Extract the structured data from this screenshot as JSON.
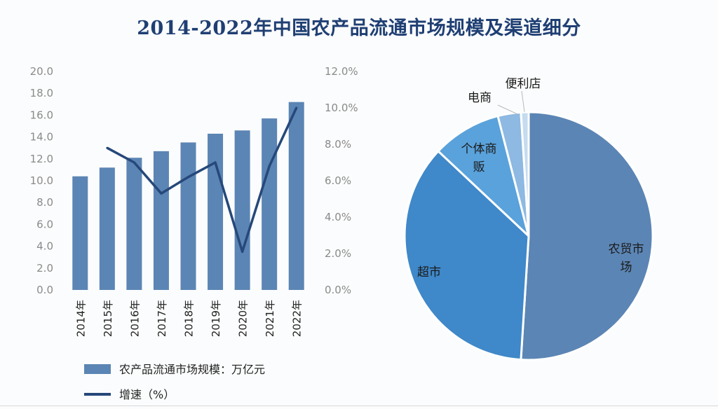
{
  "title": "2014-2022年中国农产品流通市场规模及渠道细分",
  "chart_data": [
    {
      "type": "bar",
      "categories": [
        "2014年",
        "2015年",
        "2016年",
        "2017年",
        "2018年",
        "2019年",
        "2020年",
        "2021年",
        "2022年"
      ],
      "series": [
        {
          "name": "农产品流通市场规模：万亿元",
          "type": "bar",
          "axis": "left",
          "color": "#5b85b4",
          "values": [
            10.4,
            11.2,
            12.1,
            12.7,
            13.5,
            14.3,
            14.6,
            15.7,
            17.2
          ]
        },
        {
          "name": "增速（%）",
          "type": "line",
          "axis": "right",
          "color": "#26487a",
          "values": [
            null,
            7.8,
            7.0,
            5.3,
            6.2,
            7.0,
            2.1,
            6.8,
            10.0
          ]
        }
      ],
      "y_left": {
        "ylim": [
          0,
          20
        ],
        "ticks": [
          "0.0",
          "2.0",
          "4.0",
          "6.0",
          "8.0",
          "10.0",
          "12.0",
          "14.0",
          "16.0",
          "18.0",
          "20.0"
        ]
      },
      "y_right": {
        "ylim": [
          0,
          12
        ],
        "ticks": [
          "0.0%",
          "2.0%",
          "4.0%",
          "6.0%",
          "8.0%",
          "10.0%",
          "12.0%"
        ]
      },
      "grid": false,
      "legend_position": "bottom"
    },
    {
      "type": "pie",
      "slices": [
        {
          "label": "农贸市场",
          "value": 51.0,
          "color": "#5b85b4"
        },
        {
          "label": "超市",
          "value": 36.0,
          "color": "#3f88c9"
        },
        {
          "label": "个体商贩",
          "value": 9.0,
          "color": "#5aa2db"
        },
        {
          "label": "电商",
          "value": 3.0,
          "color": "#8db9e2"
        },
        {
          "label": "便利店",
          "value": 1.0,
          "color": "#c5dbef"
        }
      ],
      "start_angle": "12 o'clock",
      "direction": "clockwise",
      "legend": false
    }
  ]
}
